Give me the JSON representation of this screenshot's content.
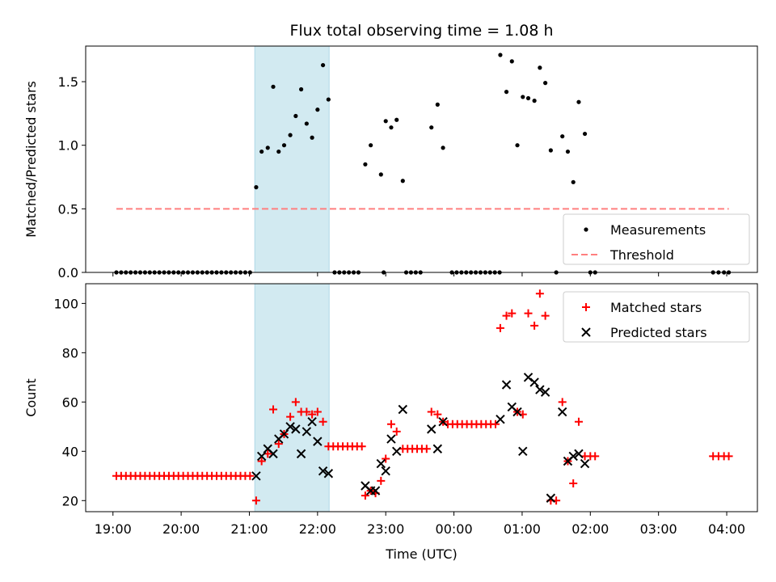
{
  "chart_data": [
    {
      "type": "scatter",
      "title": "Flux total observing time = 1.08 h",
      "ylabel": "Matched/Predicted stars",
      "xlabel": "",
      "xlim": [
        18.6,
        28.45
      ],
      "ylim": [
        0,
        1.78
      ],
      "yticks": [
        0.0,
        0.5,
        1.0,
        1.5
      ],
      "ytick_labels": [
        "0.0",
        "0.5",
        "1.0",
        "1.5"
      ],
      "grid": false,
      "legend": "lower-right",
      "shaded_span": {
        "x0": 21.08,
        "x1": 22.17,
        "color": "#add8e6"
      },
      "series": [
        {
          "name": "Measurements",
          "marker": "dot",
          "color": "#000000",
          "points": [
            [
              19.05,
              0
            ],
            [
              19.12,
              0
            ],
            [
              19.19,
              0
            ],
            [
              19.26,
              0
            ],
            [
              19.33,
              0
            ],
            [
              19.4,
              0
            ],
            [
              19.47,
              0
            ],
            [
              19.54,
              0
            ],
            [
              19.61,
              0
            ],
            [
              19.68,
              0
            ],
            [
              19.75,
              0
            ],
            [
              19.82,
              0
            ],
            [
              19.89,
              0
            ],
            [
              19.96,
              0
            ],
            [
              20.03,
              0
            ],
            [
              20.1,
              0
            ],
            [
              20.17,
              0
            ],
            [
              20.24,
              0
            ],
            [
              20.31,
              0
            ],
            [
              20.38,
              0
            ],
            [
              20.45,
              0
            ],
            [
              20.52,
              0
            ],
            [
              20.59,
              0
            ],
            [
              20.66,
              0
            ],
            [
              20.73,
              0
            ],
            [
              20.8,
              0
            ],
            [
              20.87,
              0
            ],
            [
              20.94,
              0
            ],
            [
              21.01,
              0
            ],
            [
              21.1,
              0.67
            ],
            [
              21.18,
              0.95
            ],
            [
              21.27,
              0.98
            ],
            [
              21.35,
              1.46
            ],
            [
              21.43,
              0.95
            ],
            [
              21.51,
              1.0
            ],
            [
              21.6,
              1.08
            ],
            [
              21.68,
              1.23
            ],
            [
              21.76,
              1.44
            ],
            [
              21.84,
              1.17
            ],
            [
              21.92,
              1.06
            ],
            [
              22.0,
              1.28
            ],
            [
              22.08,
              1.63
            ],
            [
              22.16,
              1.36
            ],
            [
              22.25,
              0
            ],
            [
              22.32,
              0
            ],
            [
              22.39,
              0
            ],
            [
              22.46,
              0
            ],
            [
              22.53,
              0
            ],
            [
              22.6,
              0
            ],
            [
              22.97,
              0
            ],
            [
              23.3,
              0
            ],
            [
              23.37,
              0
            ],
            [
              23.44,
              0
            ],
            [
              23.51,
              0
            ],
            [
              23.97,
              0
            ],
            [
              24.04,
              0
            ],
            [
              24.11,
              0
            ],
            [
              24.18,
              0
            ],
            [
              24.25,
              0
            ],
            [
              24.32,
              0
            ],
            [
              24.39,
              0
            ],
            [
              24.46,
              0
            ],
            [
              24.53,
              0
            ],
            [
              24.6,
              0
            ],
            [
              24.67,
              0
            ],
            [
              22.7,
              0.85
            ],
            [
              22.78,
              1.0
            ],
            [
              22.93,
              0.77
            ],
            [
              23.0,
              1.19
            ],
            [
              23.08,
              1.14
            ],
            [
              23.16,
              1.2
            ],
            [
              23.25,
              0.72
            ],
            [
              23.67,
              1.14
            ],
            [
              23.76,
              1.32
            ],
            [
              23.84,
              0.98
            ],
            [
              24.68,
              1.71
            ],
            [
              24.77,
              1.42
            ],
            [
              24.85,
              1.66
            ],
            [
              24.93,
              1.0
            ],
            [
              25.01,
              1.38
            ],
            [
              25.09,
              1.37
            ],
            [
              25.18,
              1.35
            ],
            [
              25.26,
              1.61
            ],
            [
              25.34,
              1.49
            ],
            [
              25.42,
              0.96
            ],
            [
              25.5,
              0
            ],
            [
              25.59,
              1.07
            ],
            [
              25.67,
              0.95
            ],
            [
              25.75,
              0.71
            ],
            [
              25.83,
              1.34
            ],
            [
              25.92,
              1.09
            ],
            [
              26.0,
              0
            ],
            [
              26.07,
              0
            ],
            [
              27.8,
              0
            ],
            [
              27.88,
              0
            ],
            [
              27.96,
              0
            ],
            [
              28.03,
              0
            ]
          ]
        },
        {
          "name": "Threshold",
          "marker": "dashed-line",
          "color": "#ff7f7f",
          "x": [
            19.05,
            28.03
          ],
          "y": [
            0.5,
            0.5
          ]
        }
      ]
    },
    {
      "type": "scatter",
      "title": "",
      "ylabel": "Count",
      "xlabel": "Time (UTC)",
      "xlim": [
        18.6,
        28.45
      ],
      "ylim": [
        15.5,
        108
      ],
      "yticks": [
        20,
        40,
        60,
        80,
        100
      ],
      "ytick_labels": [
        "20",
        "40",
        "60",
        "80",
        "100"
      ],
      "xticks": [
        19,
        20,
        21,
        22,
        23,
        24,
        25,
        26,
        27,
        28
      ],
      "xtick_labels": [
        "19:00",
        "20:00",
        "21:00",
        "22:00",
        "23:00",
        "00:00",
        "01:00",
        "02:00",
        "03:00",
        "04:00"
      ],
      "grid": false,
      "legend": "top-right",
      "shaded_span": {
        "x0": 21.08,
        "x1": 22.17,
        "color": "#add8e6"
      },
      "series": [
        {
          "name": "Matched stars",
          "marker": "plus",
          "color": "#ff0000",
          "points": [
            [
              19.05,
              30
            ],
            [
              19.12,
              30
            ],
            [
              19.19,
              30
            ],
            [
              19.26,
              30
            ],
            [
              19.33,
              30
            ],
            [
              19.4,
              30
            ],
            [
              19.47,
              30
            ],
            [
              19.54,
              30
            ],
            [
              19.61,
              30
            ],
            [
              19.68,
              30
            ],
            [
              19.75,
              30
            ],
            [
              19.82,
              30
            ],
            [
              19.89,
              30
            ],
            [
              19.96,
              30
            ],
            [
              20.03,
              30
            ],
            [
              20.1,
              30
            ],
            [
              20.17,
              30
            ],
            [
              20.24,
              30
            ],
            [
              20.31,
              30
            ],
            [
              20.38,
              30
            ],
            [
              20.45,
              30
            ],
            [
              20.52,
              30
            ],
            [
              20.59,
              30
            ],
            [
              20.66,
              30
            ],
            [
              20.73,
              30
            ],
            [
              20.8,
              30
            ],
            [
              20.87,
              30
            ],
            [
              20.94,
              30
            ],
            [
              21.01,
              30
            ],
            [
              21.1,
              20
            ],
            [
              21.18,
              36
            ],
            [
              21.27,
              39
            ],
            [
              21.35,
              57
            ],
            [
              21.43,
              43
            ],
            [
              21.51,
              47
            ],
            [
              21.6,
              54
            ],
            [
              21.68,
              60
            ],
            [
              21.76,
              56
            ],
            [
              21.84,
              56
            ],
            [
              21.92,
              55
            ],
            [
              22.0,
              56
            ],
            [
              22.08,
              52
            ],
            [
              22.16,
              42
            ],
            [
              22.23,
              42
            ],
            [
              22.3,
              42
            ],
            [
              22.37,
              42
            ],
            [
              22.44,
              42
            ],
            [
              22.51,
              42
            ],
            [
              22.58,
              42
            ],
            [
              22.65,
              42
            ],
            [
              22.7,
              22
            ],
            [
              22.78,
              24
            ],
            [
              22.85,
              23
            ],
            [
              22.93,
              28
            ],
            [
              23.0,
              37
            ],
            [
              23.08,
              51
            ],
            [
              23.16,
              48
            ],
            [
              23.25,
              41
            ],
            [
              23.32,
              41
            ],
            [
              23.39,
              41
            ],
            [
              23.46,
              41
            ],
            [
              23.53,
              41
            ],
            [
              23.6,
              41
            ],
            [
              23.67,
              56
            ],
            [
              23.76,
              55
            ],
            [
              23.84,
              52
            ],
            [
              23.91,
              51
            ],
            [
              23.98,
              51
            ],
            [
              24.05,
              51
            ],
            [
              24.12,
              51
            ],
            [
              24.19,
              51
            ],
            [
              24.26,
              51
            ],
            [
              24.33,
              51
            ],
            [
              24.4,
              51
            ],
            [
              24.47,
              51
            ],
            [
              24.54,
              51
            ],
            [
              24.61,
              51
            ],
            [
              24.68,
              90
            ],
            [
              24.77,
              95
            ],
            [
              24.85,
              96
            ],
            [
              24.93,
              56
            ],
            [
              25.01,
              55
            ],
            [
              25.09,
              96
            ],
            [
              25.18,
              91
            ],
            [
              25.26,
              104
            ],
            [
              25.34,
              95
            ],
            [
              25.42,
              20
            ],
            [
              25.5,
              20
            ],
            [
              25.59,
              60
            ],
            [
              25.67,
              36
            ],
            [
              25.75,
              27
            ],
            [
              25.83,
              52
            ],
            [
              25.92,
              38
            ],
            [
              26.0,
              38
            ],
            [
              26.07,
              38
            ],
            [
              27.8,
              38
            ],
            [
              27.88,
              38
            ],
            [
              27.96,
              38
            ],
            [
              28.03,
              38
            ]
          ]
        },
        {
          "name": "Predicted stars",
          "marker": "x",
          "color": "#000000",
          "points": [
            [
              21.1,
              30
            ],
            [
              21.18,
              38
            ],
            [
              21.27,
              41
            ],
            [
              21.35,
              39
            ],
            [
              21.43,
              45
            ],
            [
              21.51,
              47
            ],
            [
              21.6,
              50
            ],
            [
              21.68,
              49
            ],
            [
              21.76,
              39
            ],
            [
              21.84,
              48
            ],
            [
              21.92,
              52
            ],
            [
              22.0,
              44
            ],
            [
              22.08,
              32
            ],
            [
              22.16,
              31
            ],
            [
              22.7,
              26
            ],
            [
              22.78,
              24
            ],
            [
              22.85,
              24
            ],
            [
              22.93,
              35
            ],
            [
              23.0,
              32
            ],
            [
              23.08,
              45
            ],
            [
              23.16,
              40
            ],
            [
              23.25,
              57
            ],
            [
              23.67,
              49
            ],
            [
              23.76,
              41
            ],
            [
              23.84,
              52
            ],
            [
              24.68,
              53
            ],
            [
              24.77,
              67
            ],
            [
              24.85,
              58
            ],
            [
              24.93,
              56
            ],
            [
              25.01,
              40
            ],
            [
              25.09,
              70
            ],
            [
              25.18,
              68
            ],
            [
              25.26,
              65
            ],
            [
              25.34,
              64
            ],
            [
              25.42,
              21
            ],
            [
              25.59,
              56
            ],
            [
              25.67,
              36
            ],
            [
              25.75,
              38
            ],
            [
              25.83,
              39
            ],
            [
              25.92,
              35
            ]
          ]
        }
      ]
    }
  ]
}
